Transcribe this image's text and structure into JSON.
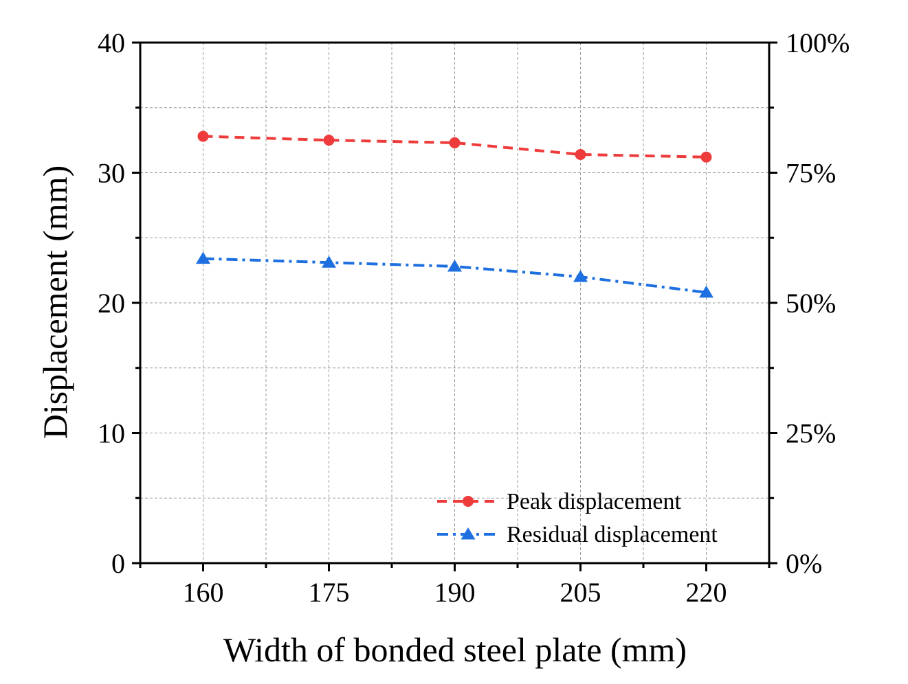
{
  "chart_data": {
    "type": "line",
    "title": "",
    "xlabel": "Width of bonded steel plate (mm)",
    "ylabel": "Displacement (mm)",
    "categories": [
      "160",
      "175",
      "190",
      "205",
      "220"
    ],
    "x": [
      160,
      175,
      190,
      205,
      220
    ],
    "xlim": [
      152.5,
      227.5
    ],
    "ylim": [
      0,
      40
    ],
    "yticks": [
      "0",
      "10",
      "20",
      "30",
      "40"
    ],
    "y2lim": [
      0,
      100
    ],
    "y2ticks": [
      "0%",
      "25%",
      "50%",
      "75%",
      "100%"
    ],
    "grid": true,
    "legend_position": "bottom-right",
    "series": [
      {
        "name": "Peak displacement",
        "color": "#ee3b3b",
        "line_style": "dashed",
        "marker": "circle",
        "values": [
          32.8,
          32.5,
          32.3,
          31.4,
          31.2
        ]
      },
      {
        "name": "Residual displacement",
        "color": "#1e6fe0",
        "line_style": "dash-dot",
        "marker": "triangle",
        "values": [
          23.4,
          23.1,
          22.8,
          22.0,
          20.8
        ]
      }
    ]
  }
}
